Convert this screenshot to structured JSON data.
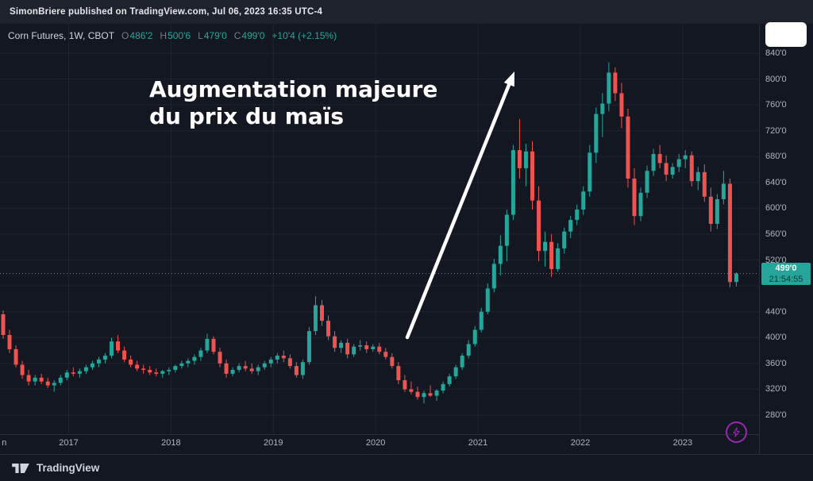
{
  "topbar": {
    "attribution": "SimonBriere published on TradingView.com, Jul 06, 2023 16:35 UTC-4"
  },
  "legend": {
    "symbol": "Corn Futures, 1W, CBOT",
    "ohlc": [
      {
        "label": "O",
        "value": "486'2"
      },
      {
        "label": "H",
        "value": "500'6"
      },
      {
        "label": "L",
        "value": "479'0"
      },
      {
        "label": "C",
        "value": "499'0"
      }
    ],
    "change": "+10'4 (+2.15%)"
  },
  "annotation": {
    "line1": "Augmentation majeure",
    "line2": "du prix du maïs"
  },
  "price_axis": {
    "last_price": "499'0",
    "countdown": "21:54:55",
    "ticks": [
      {
        "value": 840,
        "label": "840'0"
      },
      {
        "value": 800,
        "label": "800'0"
      },
      {
        "value": 760,
        "label": "760'0"
      },
      {
        "value": 720,
        "label": "720'0"
      },
      {
        "value": 680,
        "label": "680'0"
      },
      {
        "value": 640,
        "label": "640'0"
      },
      {
        "value": 600,
        "label": "600'0"
      },
      {
        "value": 560,
        "label": "560'0"
      },
      {
        "value": 520,
        "label": "520'0"
      },
      {
        "value": 440,
        "label": "440'0"
      },
      {
        "value": 400,
        "label": "400'0"
      },
      {
        "value": 360,
        "label": "360'0"
      },
      {
        "value": 320,
        "label": "320'0"
      },
      {
        "value": 280,
        "label": "280'0"
      }
    ]
  },
  "time_axis": {
    "ticks": [
      {
        "value": 2016.37,
        "label": "n"
      },
      {
        "value": 2017,
        "label": "2017"
      },
      {
        "value": 2018,
        "label": "2018"
      },
      {
        "value": 2019,
        "label": "2019"
      },
      {
        "value": 2020,
        "label": "2020"
      },
      {
        "value": 2021,
        "label": "2021"
      },
      {
        "value": 2022,
        "label": "2022"
      },
      {
        "value": 2023,
        "label": "2023"
      }
    ]
  },
  "footer": {
    "brand": "TradingView"
  },
  "colors": {
    "up": "#26a69a",
    "down": "#ef5350",
    "purple": "#9c27b0",
    "bg": "#131722"
  },
  "chart_data": {
    "type": "candlestick",
    "title": "Corn Futures, 1W, CBOT",
    "symbol": "Corn Futures",
    "timeframe": "1W",
    "exchange": "CBOT",
    "x_start_year": 2016.36,
    "x_step_years": 0.0623,
    "x_ticks": [
      2017,
      2018,
      2019,
      2020,
      2021,
      2022,
      2023
    ],
    "ylim": [
      250,
      885
    ],
    "y_gridlines_every": 40,
    "grid": true,
    "legend_position": "top-left",
    "last_close": 499,
    "last_candle": {
      "open": "486'2",
      "high": "500'6",
      "low": "479'0",
      "close": "499'0",
      "change": "+10'4 (+2.15%)"
    },
    "candles": [
      [
        436,
        442,
        398,
        404
      ],
      [
        404,
        412,
        376,
        382
      ],
      [
        382,
        388,
        354,
        358
      ],
      [
        358,
        364,
        336,
        342
      ],
      [
        342,
        350,
        326,
        332
      ],
      [
        332,
        342,
        326,
        338
      ],
      [
        338,
        344,
        328,
        332
      ],
      [
        332,
        338,
        322,
        326
      ],
      [
        326,
        334,
        316,
        330
      ],
      [
        330,
        342,
        326,
        338
      ],
      [
        338,
        350,
        334,
        346
      ],
      [
        346,
        354,
        340,
        344
      ],
      [
        344,
        352,
        338,
        348
      ],
      [
        348,
        358,
        344,
        354
      ],
      [
        354,
        364,
        350,
        360
      ],
      [
        360,
        370,
        354,
        366
      ],
      [
        366,
        376,
        360,
        372
      ],
      [
        372,
        400,
        368,
        394
      ],
      [
        394,
        404,
        376,
        380
      ],
      [
        380,
        386,
        362,
        366
      ],
      [
        366,
        372,
        354,
        358
      ],
      [
        358,
        364,
        348,
        352
      ],
      [
        352,
        358,
        344,
        350
      ],
      [
        350,
        356,
        342,
        346
      ],
      [
        346,
        352,
        340,
        344
      ],
      [
        344,
        350,
        338,
        348
      ],
      [
        348,
        354,
        342,
        350
      ],
      [
        350,
        358,
        346,
        356
      ],
      [
        356,
        364,
        352,
        360
      ],
      [
        360,
        368,
        354,
        364
      ],
      [
        364,
        374,
        358,
        370
      ],
      [
        370,
        384,
        364,
        380
      ],
      [
        380,
        406,
        376,
        398
      ],
      [
        398,
        402,
        374,
        378
      ],
      [
        378,
        384,
        354,
        360
      ],
      [
        360,
        366,
        338,
        344
      ],
      [
        344,
        354,
        340,
        350
      ],
      [
        350,
        360,
        346,
        356
      ],
      [
        356,
        364,
        348,
        352
      ],
      [
        352,
        360,
        344,
        348
      ],
      [
        348,
        358,
        342,
        354
      ],
      [
        354,
        364,
        350,
        360
      ],
      [
        360,
        370,
        354,
        366
      ],
      [
        366,
        376,
        360,
        372
      ],
      [
        372,
        380,
        362,
        368
      ],
      [
        368,
        374,
        352,
        356
      ],
      [
        356,
        362,
        338,
        342
      ],
      [
        342,
        366,
        336,
        362
      ],
      [
        362,
        416,
        358,
        410
      ],
      [
        410,
        464,
        404,
        450
      ],
      [
        450,
        458,
        418,
        426
      ],
      [
        426,
        434,
        396,
        402
      ],
      [
        402,
        410,
        378,
        384
      ],
      [
        384,
        396,
        376,
        392
      ],
      [
        392,
        398,
        368,
        374
      ],
      [
        374,
        390,
        370,
        386
      ],
      [
        386,
        396,
        380,
        388
      ],
      [
        388,
        394,
        376,
        382
      ],
      [
        382,
        390,
        378,
        386
      ],
      [
        386,
        392,
        374,
        378
      ],
      [
        378,
        384,
        366,
        370
      ],
      [
        370,
        376,
        352,
        356
      ],
      [
        356,
        362,
        328,
        334
      ],
      [
        334,
        342,
        316,
        320
      ],
      [
        320,
        332,
        312,
        316
      ],
      [
        316,
        324,
        304,
        308
      ],
      [
        308,
        318,
        298,
        314
      ],
      [
        314,
        326,
        308,
        310
      ],
      [
        310,
        320,
        302,
        318
      ],
      [
        318,
        332,
        314,
        328
      ],
      [
        328,
        344,
        324,
        340
      ],
      [
        340,
        358,
        336,
        354
      ],
      [
        354,
        376,
        350,
        372
      ],
      [
        372,
        396,
        368,
        390
      ],
      [
        390,
        418,
        386,
        412
      ],
      [
        412,
        446,
        408,
        440
      ],
      [
        440,
        484,
        436,
        476
      ],
      [
        476,
        522,
        470,
        514
      ],
      [
        514,
        558,
        496,
        542
      ],
      [
        542,
        598,
        518,
        590
      ],
      [
        590,
        698,
        582,
        690
      ],
      [
        690,
        738,
        646,
        662
      ],
      [
        662,
        700,
        634,
        688
      ],
      [
        688,
        704,
        598,
        612
      ],
      [
        612,
        634,
        518,
        534
      ],
      [
        534,
        564,
        510,
        548
      ],
      [
        548,
        560,
        494,
        506
      ],
      [
        506,
        546,
        502,
        538
      ],
      [
        538,
        570,
        530,
        564
      ],
      [
        564,
        588,
        554,
        582
      ],
      [
        582,
        606,
        574,
        598
      ],
      [
        598,
        634,
        590,
        626
      ],
      [
        626,
        698,
        618,
        686
      ],
      [
        686,
        756,
        670,
        746
      ],
      [
        746,
        778,
        710,
        762
      ],
      [
        762,
        826,
        750,
        810
      ],
      [
        810,
        818,
        766,
        778
      ],
      [
        778,
        794,
        724,
        742
      ],
      [
        742,
        754,
        632,
        646
      ],
      [
        646,
        662,
        574,
        588
      ],
      [
        588,
        632,
        580,
        624
      ],
      [
        624,
        666,
        616,
        658
      ],
      [
        658,
        692,
        650,
        684
      ],
      [
        684,
        698,
        662,
        670
      ],
      [
        670,
        682,
        642,
        652
      ],
      [
        652,
        670,
        646,
        664
      ],
      [
        664,
        684,
        656,
        676
      ],
      [
        676,
        690,
        662,
        682
      ],
      [
        682,
        688,
        634,
        642
      ],
      [
        642,
        664,
        628,
        656
      ],
      [
        656,
        668,
        610,
        618
      ],
      [
        618,
        632,
        564,
        576
      ],
      [
        576,
        622,
        568,
        614
      ],
      [
        614,
        658,
        606,
        638
      ],
      [
        638,
        646,
        478,
        486
      ],
      [
        486,
        501,
        479,
        499
      ]
    ]
  }
}
